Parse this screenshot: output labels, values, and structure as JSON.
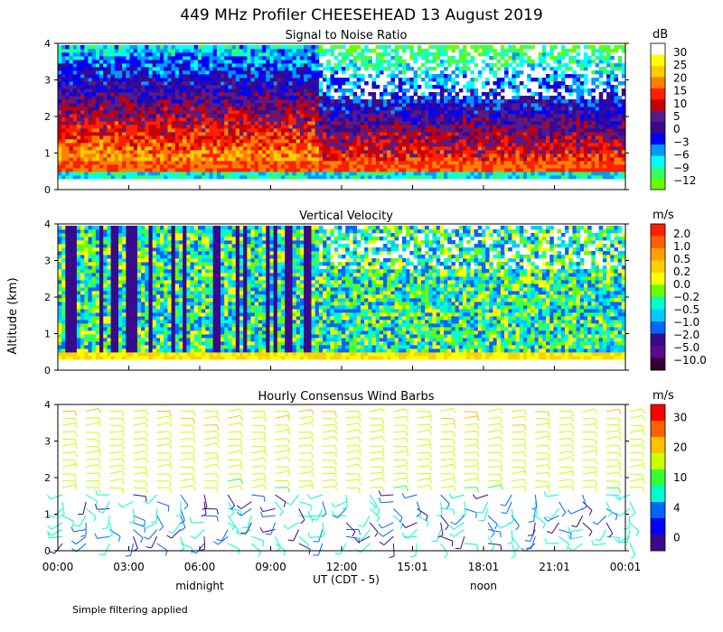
{
  "title": "449 MHz Profiler CHEESEHEAD 13 August 2019",
  "footnote": "Simple filtering applied",
  "ylabel": "Altitude (km)",
  "xlabel": "UT  (CDT - 5)",
  "x_ticks": [
    "00:00",
    "03:00",
    "06:00",
    "09:00",
    "12:00",
    "15:01",
    "18:01",
    "21:01",
    "00:01"
  ],
  "local_markers": [
    {
      "label": "midnight",
      "x_hours": 6
    },
    {
      "label": "noon",
      "x_hours": 18
    }
  ],
  "colors": {
    "missing": "#ffffff",
    "axes": "#000000"
  },
  "chart_data": [
    {
      "type": "heatmap",
      "title": "Signal to Noise Ratio",
      "unit": "dB",
      "xlim_hours": [
        0,
        24
      ],
      "ylim": [
        0,
        4
      ],
      "y_ticks": [
        0,
        1,
        2,
        3,
        4
      ],
      "colorbar": {
        "labels": [
          "30",
          "25",
          "20",
          "15",
          "10",
          "5",
          "0",
          "−3",
          "−6",
          "−9",
          "−12"
        ],
        "colors": [
          "#ffffff",
          "#ffff00",
          "#ffcc00",
          "#ff8000",
          "#ff2000",
          "#c80000",
          "#551a8b",
          "#3a0a8c",
          "#0000ff",
          "#0099ff",
          "#00ffff",
          "#33ff66",
          "#66ff00"
        ]
      }
    },
    {
      "type": "heatmap",
      "title": "Vertical Velocity",
      "unit": "m/s",
      "xlim_hours": [
        0,
        24
      ],
      "ylim": [
        0,
        4
      ],
      "y_ticks": [
        0,
        1,
        2,
        3,
        4
      ],
      "colorbar": {
        "labels": [
          "2.0",
          "1.0",
          "0.5",
          "0.2",
          "0.0",
          "−0.2",
          "−0.5",
          "−1.0",
          "−2.0",
          "−5.0",
          "−10.0"
        ],
        "colors": [
          "#ff2000",
          "#ff6000",
          "#ffa000",
          "#ffd000",
          "#ffff00",
          "#66ff00",
          "#00ffcc",
          "#00ccff",
          "#0066ff",
          "#3a0a8c",
          "#5a0a8c",
          "#330033"
        ]
      }
    },
    {
      "type": "scatter",
      "title": "Hourly Consensus Wind Barbs",
      "unit": "m/s",
      "xlim_hours": [
        0,
        24
      ],
      "ylim": [
        0,
        4
      ],
      "y_ticks": [
        0,
        1,
        2,
        3,
        4
      ],
      "colorbar": {
        "labels": [
          "30",
          "20",
          "10",
          "4",
          "0"
        ],
        "colors": [
          "#ff0000",
          "#ff6000",
          "#ffc000",
          "#ccff00",
          "#33ff33",
          "#00ffcc",
          "#0066ff",
          "#0000ff",
          "#3a0a8c"
        ]
      }
    }
  ]
}
